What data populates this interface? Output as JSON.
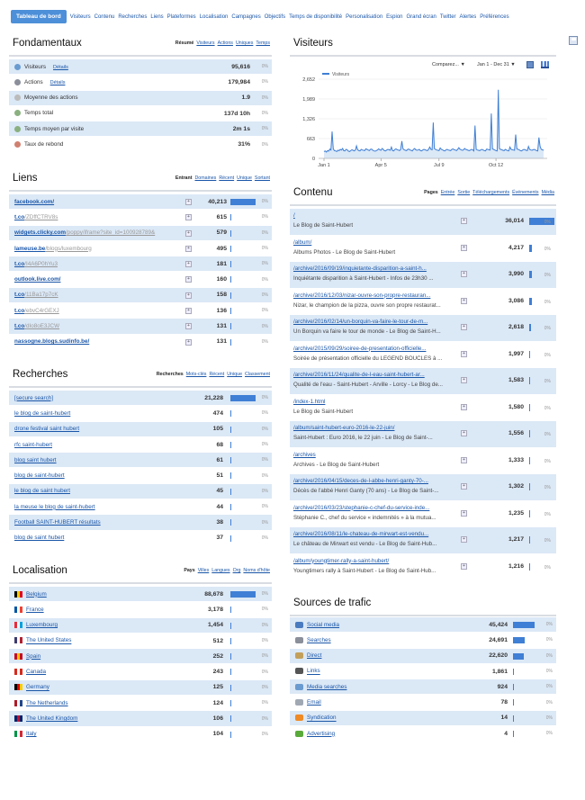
{
  "nav": {
    "active": "Tableau de bord",
    "links": [
      "Visiteurs",
      "Contenu",
      "Recherches",
      "Liens",
      "Plateformes",
      "Localisation",
      "Campagnes",
      "Objectifs",
      "Temps de disponibilité",
      "Personalisation",
      "Espion",
      "Grand écran",
      "Twitter",
      "Alertes",
      "Préférences"
    ]
  },
  "fond": {
    "title": "Fondamentaux",
    "tabs": [
      "Résumé",
      "Visiteurs",
      "Actions",
      "Uniques",
      "Temps"
    ],
    "rows": [
      {
        "label": "Visiteurs",
        "link": "Détails",
        "value": "95,616",
        "pct": "0%"
      },
      {
        "label": "Actions",
        "link": "Détails",
        "value": "179,984",
        "pct": "0%"
      },
      {
        "label": "Moyenne des actions",
        "link": "",
        "value": "1.9",
        "pct": "0%"
      },
      {
        "label": "Temps total",
        "link": "",
        "value": "137d 10h",
        "pct": "0%"
      },
      {
        "label": "Temps moyen par visite",
        "link": "",
        "value": "2m 1s",
        "pct": "0%"
      },
      {
        "label": "Taux de rebond",
        "link": "",
        "value": "31%",
        "pct": "0%"
      }
    ]
  },
  "visiteurs": {
    "title": "Visiteurs",
    "compare": "Comparez... ▼",
    "range": "Jan 1 - Dec 31 ▼",
    "legend": "Visiteurs",
    "yticks": [
      "2,652",
      "1,989",
      "1,326",
      "663",
      "0"
    ],
    "xticks": [
      "Jan 1",
      "Apr 5",
      "Jul 9",
      "Oct 12"
    ]
  },
  "chart_data": {
    "type": "line",
    "title": "",
    "series": [
      {
        "name": "Visiteurs"
      }
    ],
    "ylim": [
      0,
      2652
    ],
    "xticks": [
      "Jan 1",
      "Apr 5",
      "Jul 9",
      "Oct 12"
    ],
    "yticks": [
      0,
      663,
      1326,
      1989,
      2652
    ],
    "values": [
      230,
      250,
      210,
      260,
      240,
      310,
      280,
      900,
      320,
      260,
      250,
      230,
      270,
      260,
      300,
      280,
      330,
      260,
      250,
      300,
      290,
      240,
      230,
      260,
      290,
      270,
      250,
      280,
      420,
      290,
      260,
      250,
      300,
      280,
      270,
      260,
      320,
      300,
      280,
      260,
      300,
      310,
      270,
      250,
      240,
      260,
      280,
      320,
      290,
      270,
      330,
      300,
      260,
      250,
      280,
      300,
      290,
      270,
      380,
      260,
      250,
      300,
      320,
      290,
      280,
      260,
      300,
      580,
      320,
      290,
      270,
      260,
      300,
      310,
      280,
      270,
      250,
      300,
      330,
      290,
      270,
      280,
      300,
      260,
      250,
      280,
      300,
      290,
      270,
      260,
      300,
      380,
      300,
      290,
      1200,
      330,
      300,
      280,
      270,
      260,
      350,
      300,
      290,
      260,
      250,
      290,
      300,
      280,
      270,
      260,
      300,
      320,
      290,
      280,
      260,
      300,
      360,
      310,
      290,
      270,
      280,
      330,
      300,
      290,
      270,
      260,
      280,
      300,
      290,
      250,
      1100,
      300,
      280,
      270,
      260,
      290,
      300,
      280,
      260,
      250,
      310,
      300,
      290,
      280,
      1500,
      320,
      300,
      280,
      260,
      250,
      2300,
      330,
      300,
      290,
      270,
      260,
      300,
      280,
      260,
      250,
      380,
      300,
      290,
      280,
      270,
      800,
      320,
      300,
      290,
      260,
      250,
      280,
      300,
      290,
      270,
      260,
      400,
      300,
      280,
      270,
      290,
      300,
      280,
      260,
      250,
      700,
      400,
      300,
      290,
      270
    ]
  },
  "liens": {
    "title": "Liens",
    "tabs": [
      "Entrant",
      "Domaines",
      "Récent",
      "Unique",
      "Sortant"
    ],
    "rows": [
      {
        "a": "facebook.com/",
        "b": "",
        "value": "40,213",
        "bar": 1.0
      },
      {
        "a": "t.co",
        "b": "/ZDffCTRV8s",
        "value": "615",
        "bar": 0.02
      },
      {
        "a": "widgets.clicky.com",
        "b": "/poppy/iframe?site_id=100928789&",
        "value": "579",
        "bar": 0.02
      },
      {
        "a": "lameuse.be",
        "b": "/blogs/luxembourg",
        "value": "495",
        "bar": 0.02
      },
      {
        "a": "t.co",
        "b": "/I4A6P0hYu3",
        "value": "181",
        "bar": 0.01
      },
      {
        "a": "outlook.live.com/",
        "b": "",
        "value": "160",
        "bar": 0.01
      },
      {
        "a": "t.co",
        "b": "/11Ba17p7cK",
        "value": "158",
        "bar": 0.01
      },
      {
        "a": "t.co",
        "b": "/ebvC4rGEXJ",
        "value": "136",
        "bar": 0.01
      },
      {
        "a": "t.co",
        "b": "/dIo8oE3JCW",
        "value": "131",
        "bar": 0.01
      },
      {
        "a": "nassogne.blogs.sudinfo.be/",
        "b": "",
        "value": "131",
        "bar": 0.01
      }
    ]
  },
  "recherches": {
    "title": "Recherches",
    "tabs": [
      "Recherches",
      "Mots-clés",
      "Récent",
      "Unique",
      "Classement"
    ],
    "rows": [
      {
        "label": "[secure search]",
        "value": "21,228",
        "bar": 1.0
      },
      {
        "label": "le blog de saint-hubert",
        "value": "474",
        "bar": 0.03
      },
      {
        "label": "drone festival saint hubert",
        "value": "105",
        "bar": 0.01
      },
      {
        "label": "rfc saint-hubert",
        "value": "68",
        "bar": 0.01
      },
      {
        "label": "blog saint hubert",
        "value": "61",
        "bar": 0.01
      },
      {
        "label": "blog de saint-hubert",
        "value": "51",
        "bar": 0.01
      },
      {
        "label": "le blog de saint hubert",
        "value": "45",
        "bar": 0.01
      },
      {
        "label": "la meuse le blog de saint-hubert",
        "value": "44",
        "bar": 0.01
      },
      {
        "label": "Football SAINT-HUBERT résultats",
        "value": "38",
        "bar": 0.01
      },
      {
        "label": "blog de saint hubert",
        "value": "37",
        "bar": 0.01
      }
    ]
  },
  "localisation": {
    "title": "Localisation",
    "tabs": [
      "Pays",
      "Villes",
      "Langues",
      "Org",
      "Noms d'hôte"
    ],
    "rows": [
      {
        "label": "Belgium",
        "flag": [
          "#000",
          "#f5d000",
          "#e2001a"
        ],
        "value": "88,678",
        "bar": 1.0
      },
      {
        "label": "France",
        "flag": [
          "#0055a4",
          "#fff",
          "#ef4135"
        ],
        "value": "3,178",
        "bar": 0.04
      },
      {
        "label": "Luxembourg",
        "flag": [
          "#ed2939",
          "#fff",
          "#00a1de"
        ],
        "value": "1,454",
        "bar": 0.02
      },
      {
        "label": "The United States",
        "flag": [
          "#3c3b6e",
          "#fff",
          "#b22234"
        ],
        "value": "512",
        "bar": 0.01
      },
      {
        "label": "Spain",
        "flag": [
          "#c60b1e",
          "#ffc400",
          "#c60b1e"
        ],
        "value": "252",
        "bar": 0.01
      },
      {
        "label": "Canada",
        "flag": [
          "#d52b1e",
          "#fff",
          "#d52b1e"
        ],
        "value": "243",
        "bar": 0.01
      },
      {
        "label": "Germany",
        "flag": [
          "#000",
          "#dd0000",
          "#ffce00"
        ],
        "value": "125",
        "bar": 0.01
      },
      {
        "label": "The Netherlands",
        "flag": [
          "#ae1c28",
          "#fff",
          "#21468b"
        ],
        "value": "124",
        "bar": 0.01
      },
      {
        "label": "The United Kingdom",
        "flag": [
          "#012169",
          "#c8102e",
          "#012169"
        ],
        "value": "106",
        "bar": 0.01
      },
      {
        "label": "Italy",
        "flag": [
          "#009246",
          "#fff",
          "#ce2b37"
        ],
        "value": "104",
        "bar": 0.01
      }
    ]
  },
  "contenu": {
    "title": "Contenu",
    "tabs": [
      "Pages",
      "Entrée",
      "Sortie",
      "Téléchargements",
      "Événements",
      "Média"
    ],
    "rows": [
      {
        "path": "/",
        "title": "Le Blog de Saint-Hubert",
        "value": "36,014",
        "bar": 1.0
      },
      {
        "path": "/album/",
        "title": "Albums Photos - Le Blog de Saint-Hubert",
        "value": "4,217",
        "bar": 0.12
      },
      {
        "path": "/archive/2016/09/19/inquietante-disparition-a-saint-h...",
        "title": "Inquiétante disparition à Saint-Hubert - Infos de 23h30 ...",
        "value": "3,990",
        "bar": 0.11
      },
      {
        "path": "/archive/2016/12/03/nizar-ouvre-son-propre-restauran...",
        "title": "Nizar, le champion de la pizza, ouvre son propre restaurat...",
        "value": "3,086",
        "bar": 0.09
      },
      {
        "path": "/archive/2016/02/14/un-borquin-va-faire-le-tour-de-m...",
        "title": "Un Borquin va faire le tour de monde - Le Blog de Saint-H...",
        "value": "2,618",
        "bar": 0.07
      },
      {
        "path": "/archive/2015/09/29/soiree-de-presentation-officielle...",
        "title": "Soirée de présentation officielle du LEGEND BOUCLES à ...",
        "value": "1,997",
        "bar": 0.05
      },
      {
        "path": "/archive/2016/11/24/qualite-de-l-eau-saint-hubert-ar...",
        "title": "Qualité de l'eau - Saint-Hubert - Arville - Lorcy - Le Blog de...",
        "value": "1,583",
        "bar": 0.04
      },
      {
        "path": "/index-1.html",
        "title": "Le Blog de Saint-Hubert",
        "value": "1,580",
        "bar": 0.04
      },
      {
        "path": "/album/saint-hubert-euro-2016-le-22-juin/",
        "title": "Saint-Hubert : Euro 2016, le 22 juin - Le Blog de Saint-...",
        "value": "1,556",
        "bar": 0.04
      },
      {
        "path": "/archives",
        "title": "Archives - Le Blog de Saint-Hubert",
        "value": "1,333",
        "bar": 0.04
      },
      {
        "path": "/archive/2016/04/15/deces-de-l-abbe-henri-ganty-70-...",
        "title": "Décès de l'abbé Henri Ganty (70 ans) - Le Blog de Saint-...",
        "value": "1,302",
        "bar": 0.04
      },
      {
        "path": "/archive/2016/03/23/stephanie-c-chef-du-service-inde...",
        "title": "Stéphanie C., chef du service « indemnités » à la mutua...",
        "value": "1,235",
        "bar": 0.03
      },
      {
        "path": "/archive/2016/08/11/le-chateau-de-mirwart-est-vendu...",
        "title": "Le château de Mirwart est vendu - Le Blog de Saint-Hub...",
        "value": "1,217",
        "bar": 0.03
      },
      {
        "path": "/album/youngtimer-rally-a-saint-hubert/",
        "title": "Youngtimers rally à Saint-Hubert - Le Blog de Saint-Hub...",
        "value": "1,216",
        "bar": 0.03
      }
    ]
  },
  "sources": {
    "title": "Sources de trafic",
    "rows": [
      {
        "label": "Social media",
        "icon": "social-media-icon",
        "color": "#4a7bc0",
        "value": "45,424",
        "bar": 1.0
      },
      {
        "label": "Searches",
        "icon": "magnifier-icon",
        "color": "#8a8f9a",
        "value": "24,691",
        "bar": 0.54
      },
      {
        "label": "Direct",
        "icon": "pencil-icon",
        "color": "#c3a05a",
        "value": "22,620",
        "bar": 0.5
      },
      {
        "label": "Links",
        "icon": "chain-link-icon",
        "color": "#555",
        "value": "1,861",
        "bar": 0.04
      },
      {
        "label": "Media searches",
        "icon": "image-icon",
        "color": "#6a9bd0",
        "value": "924",
        "bar": 0.02
      },
      {
        "label": "Email",
        "icon": "envelope-icon",
        "color": "#a0a8b4",
        "value": "78",
        "bar": 0.01
      },
      {
        "label": "Syndication",
        "icon": "rss-icon",
        "color": "#f08a24",
        "value": "14",
        "bar": 0.01
      },
      {
        "label": "Advertising",
        "icon": "leaf-icon",
        "color": "#5aaa3a",
        "value": "4",
        "bar": 0.01
      }
    ]
  }
}
